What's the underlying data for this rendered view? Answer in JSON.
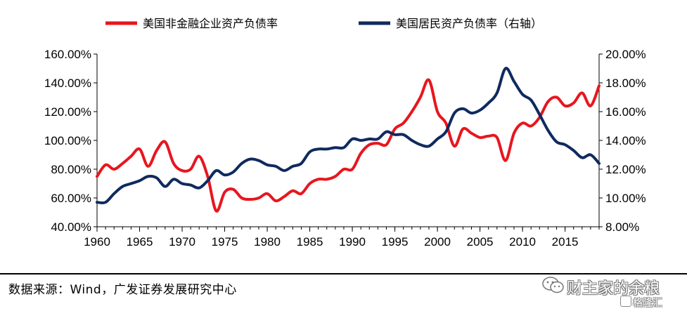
{
  "legend": {
    "series1_label": "美国非金融企业资产负债率",
    "series2_label": "美国居民资产负债率（右轴）"
  },
  "source": "数据来源：Wind，广发证券发展研究中心",
  "watermark": {
    "text": "财主家的余粮",
    "sub": "格隆汇"
  },
  "colors": {
    "series1": "#e8161e",
    "series2": "#0f2a5e"
  },
  "chart_data": {
    "type": "line",
    "x_ticks": [
      "1960",
      "1965",
      "1970",
      "1975",
      "1980",
      "1985",
      "1990",
      "1995",
      "2000",
      "2005",
      "2010",
      "2015"
    ],
    "x_range": [
      1960,
      2019
    ],
    "y_left_ticks": [
      "160.00%",
      "140.00%",
      "120.00%",
      "100.00%",
      "80.00%",
      "60.00%",
      "40.00%"
    ],
    "y_left_range": [
      40,
      160
    ],
    "y_right_ticks": [
      "20.00%",
      "18.00%",
      "16.00%",
      "14.00%",
      "12.00%",
      "10.00%",
      "8.00%"
    ],
    "y_right_range": [
      8,
      20
    ],
    "series": [
      {
        "name": "美国非金融企业资产负债率",
        "axis": "left",
        "x": [
          1960,
          1961,
          1962,
          1963,
          1964,
          1965,
          1966,
          1967,
          1968,
          1969,
          1970,
          1971,
          1972,
          1973,
          1974,
          1975,
          1976,
          1977,
          1978,
          1979,
          1980,
          1981,
          1982,
          1983,
          1984,
          1985,
          1986,
          1987,
          1988,
          1989,
          1990,
          1991,
          1992,
          1993,
          1994,
          1995,
          1996,
          1997,
          1998,
          1999,
          2000,
          2001,
          2002,
          2003,
          2004,
          2005,
          2006,
          2007,
          2008,
          2009,
          2010,
          2011,
          2012,
          2013,
          2014,
          2015,
          2016,
          2017,
          2018,
          2019
        ],
        "values": [
          75,
          83,
          80,
          84,
          89,
          94,
          82,
          93,
          99,
          84,
          79,
          80,
          89,
          75,
          51,
          64,
          66,
          60,
          59,
          60,
          63,
          58,
          61,
          65,
          63,
          70,
          73,
          73,
          75,
          80,
          80,
          91,
          97,
          98,
          97,
          108,
          112,
          120,
          130,
          142,
          120,
          112,
          96,
          108,
          105,
          102,
          103,
          102,
          86,
          105,
          112,
          110,
          116,
          127,
          130,
          124,
          126,
          133,
          124,
          138
        ]
      },
      {
        "name": "美国居民资产负债率（右轴）",
        "axis": "right",
        "x": [
          1960,
          1961,
          1962,
          1963,
          1964,
          1965,
          1966,
          1967,
          1968,
          1969,
          1970,
          1971,
          1972,
          1973,
          1974,
          1975,
          1976,
          1977,
          1978,
          1979,
          1980,
          1981,
          1982,
          1983,
          1984,
          1985,
          1986,
          1987,
          1988,
          1989,
          1990,
          1991,
          1992,
          1993,
          1994,
          1995,
          1996,
          1997,
          1998,
          1999,
          2000,
          2001,
          2002,
          2003,
          2004,
          2005,
          2006,
          2007,
          2008,
          2009,
          2010,
          2011,
          2012,
          2013,
          2014,
          2015,
          2016,
          2017,
          2018,
          2019
        ],
        "values": [
          9.7,
          9.7,
          10.3,
          10.8,
          11.0,
          11.2,
          11.5,
          11.4,
          10.8,
          11.3,
          11.0,
          10.9,
          10.7,
          11.2,
          11.9,
          11.6,
          11.8,
          12.4,
          12.7,
          12.6,
          12.3,
          12.2,
          11.9,
          12.2,
          12.4,
          13.2,
          13.4,
          13.4,
          13.5,
          13.5,
          14.1,
          14.0,
          14.1,
          14.1,
          14.6,
          14.4,
          14.4,
          14.0,
          13.7,
          13.6,
          14.1,
          14.6,
          15.9,
          16.2,
          15.9,
          16.1,
          16.6,
          17.3,
          19.0,
          18.1,
          17.2,
          16.8,
          15.8,
          14.7,
          13.9,
          13.7,
          13.3,
          12.8,
          13.0,
          12.4
        ]
      }
    ]
  }
}
